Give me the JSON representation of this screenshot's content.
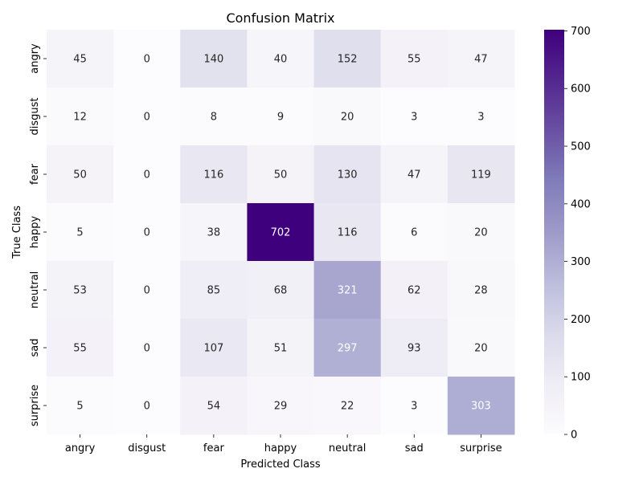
{
  "chart_data": {
    "type": "heatmap",
    "title": "Confusion Matrix",
    "xlabel": "Predicted Class",
    "ylabel": "True Class",
    "x_categories": [
      "angry",
      "disgust",
      "fear",
      "happy",
      "neutral",
      "sad",
      "surprise"
    ],
    "y_categories": [
      "angry",
      "disgust",
      "fear",
      "happy",
      "neutral",
      "sad",
      "surprise"
    ],
    "values": [
      [
        45,
        0,
        140,
        40,
        152,
        55,
        47
      ],
      [
        12,
        0,
        8,
        9,
        20,
        3,
        3
      ],
      [
        50,
        0,
        116,
        50,
        130,
        47,
        119
      ],
      [
        5,
        0,
        38,
        702,
        116,
        6,
        20
      ],
      [
        53,
        0,
        85,
        68,
        321,
        62,
        28
      ],
      [
        55,
        0,
        107,
        51,
        297,
        93,
        20
      ],
      [
        5,
        0,
        54,
        29,
        22,
        3,
        303
      ]
    ],
    "colormap": "Purples",
    "colorbar": {
      "range": [
        0,
        702
      ],
      "ticks": [
        "0",
        "100",
        "200",
        "300",
        "400",
        "500",
        "600",
        "700"
      ]
    },
    "colors": {
      "low": "#fcfbfd",
      "high": "#3f007d",
      "annotation_dark": "#262626",
      "annotation_light": "#ffffff"
    },
    "grid": false,
    "annotations": true
  }
}
